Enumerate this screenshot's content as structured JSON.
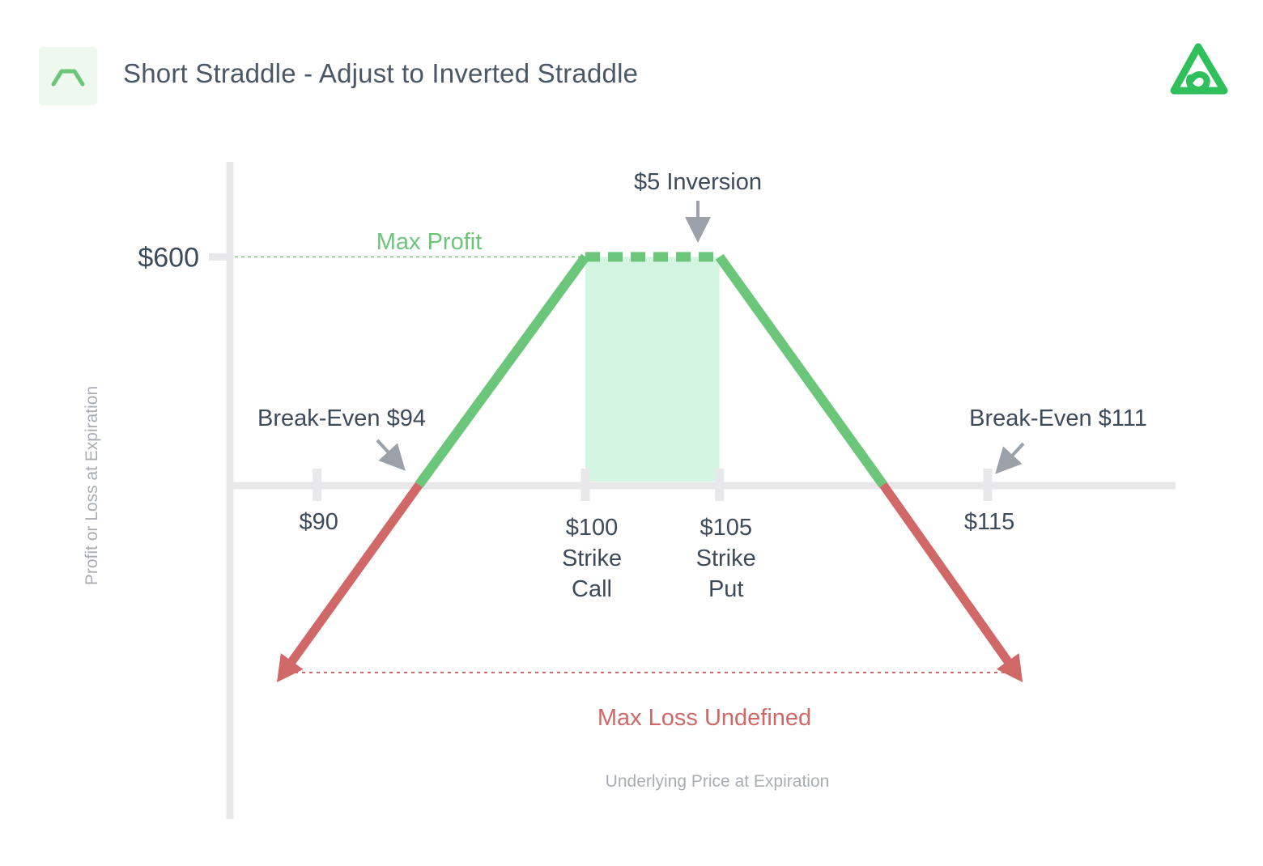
{
  "header": {
    "title": "Short Straddle - Adjust to Inverted Straddle",
    "strategy_icon": "trapezoid-payoff-icon",
    "brand_logo": "green-triangle-loop-logo"
  },
  "colors": {
    "profit": "#6cc67a",
    "profit_fill": "#d5f5e3",
    "loss": "#d06868",
    "axis": "#e8e8eb",
    "text_dark": "#3d4a5a",
    "text_muted": "#a8adb4",
    "arrow_grey": "#9aa1a9"
  },
  "chart_data": {
    "type": "line",
    "xlabel": "Underlying Price at Expiration",
    "ylabel": "Profit or Loss at Expiration",
    "x_ticks": [
      {
        "value": 90,
        "label": "$90"
      },
      {
        "value": 100,
        "label": "$100",
        "sublabel1": "Strike",
        "sublabel2": "Call"
      },
      {
        "value": 105,
        "label": "$105",
        "sublabel1": "Strike",
        "sublabel2": "Put"
      },
      {
        "value": 115,
        "label": "$115"
      }
    ],
    "y_ticks": [
      {
        "value": 600,
        "label": "$600"
      }
    ],
    "xlim": [
      86.75,
      122
    ],
    "ylim": [
      -880,
      850
    ],
    "series": [
      {
        "profit_segments": [
          {
            "x": [
              93.8,
              100,
              105,
              111.1
            ],
            "y": [
              0,
              600,
              600,
              0
            ]
          }
        ],
        "loss_segments": [
          {
            "x": [
              93.8,
              88.5
            ],
            "y": [
              0,
              -520
            ]
          },
          {
            "x": [
              111.1,
              116.3
            ],
            "y": [
              0,
              -520
            ]
          }
        ]
      }
    ],
    "inversion_region": {
      "x_start": 100,
      "x_end": 105
    },
    "annotations": {
      "max_profit": "Max Profit",
      "inversion": "$5 Inversion",
      "break_even_low": "Break-Even $94",
      "break_even_high": "Break-Even $111",
      "max_loss": "Max Loss Undefined"
    },
    "grid": false,
    "legend": "none"
  }
}
